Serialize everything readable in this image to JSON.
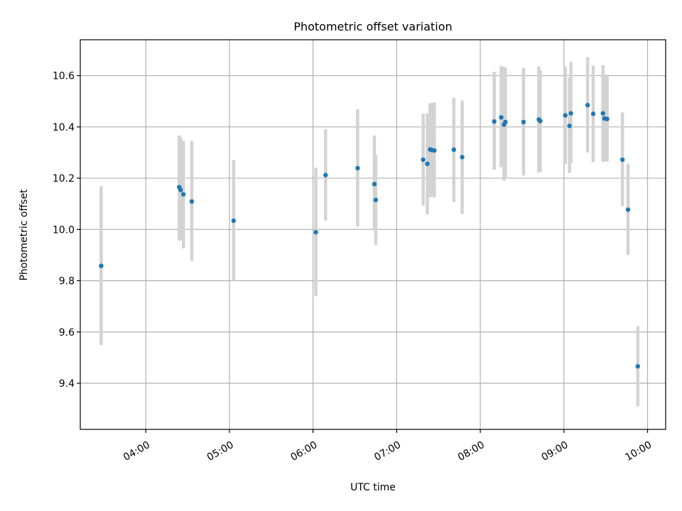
{
  "chart_data": {
    "type": "scatter",
    "title": "Photometric offset variation",
    "xlabel": "UTC time",
    "ylabel": "Photometric offset",
    "xlim": [
      "03:13",
      "10:13"
    ],
    "ylim": [
      9.22,
      10.74
    ],
    "grid": true,
    "x_ticks": [
      "04:00",
      "05:00",
      "06:00",
      "07:00",
      "08:00",
      "09:00",
      "10:00"
    ],
    "y_ticks": [
      "9.4",
      "9.6",
      "9.8",
      "10.0",
      "10.2",
      "10.4",
      "10.6"
    ],
    "colors": {
      "point": "#1f77b4",
      "errorbar": "#d3d3d3",
      "grid": "#b0b0b0"
    },
    "points": [
      {
        "x": "03:28",
        "y": 9.858,
        "lo": 9.549,
        "hi": 10.169
      },
      {
        "x": "04:24",
        "y": 10.165,
        "lo": 9.956,
        "hi": 10.367
      },
      {
        "x": "04:25",
        "y": 10.154,
        "lo": 9.96,
        "hi": 10.359
      },
      {
        "x": "04:27",
        "y": 10.137,
        "lo": 9.926,
        "hi": 10.346
      },
      {
        "x": "04:33",
        "y": 10.109,
        "lo": 9.877,
        "hi": 10.346
      },
      {
        "x": "05:03",
        "y": 10.034,
        "lo": 9.8,
        "hi": 10.27
      },
      {
        "x": "06:02",
        "y": 9.989,
        "lo": 9.74,
        "hi": 10.241
      },
      {
        "x": "06:09",
        "y": 10.212,
        "lo": 10.035,
        "hi": 10.392
      },
      {
        "x": "06:32",
        "y": 10.239,
        "lo": 10.011,
        "hi": 10.469
      },
      {
        "x": "06:44",
        "y": 10.177,
        "lo": 9.996,
        "hi": 10.367
      },
      {
        "x": "06:45",
        "y": 10.115,
        "lo": 9.94,
        "hi": 10.29
      },
      {
        "x": "07:19",
        "y": 10.272,
        "lo": 10.093,
        "hi": 10.452
      },
      {
        "x": "07:22",
        "y": 10.256,
        "lo": 10.059,
        "hi": 10.452
      },
      {
        "x": "07:24",
        "y": 10.312,
        "lo": 10.126,
        "hi": 10.492
      },
      {
        "x": "07:25",
        "y": 10.31,
        "lo": 10.13,
        "hi": 10.493
      },
      {
        "x": "07:27",
        "y": 10.308,
        "lo": 10.124,
        "hi": 10.496
      },
      {
        "x": "07:41",
        "y": 10.311,
        "lo": 10.107,
        "hi": 10.513
      },
      {
        "x": "07:47",
        "y": 10.282,
        "lo": 10.061,
        "hi": 10.503
      },
      {
        "x": "08:10",
        "y": 10.421,
        "lo": 10.233,
        "hi": 10.615
      },
      {
        "x": "08:15",
        "y": 10.437,
        "lo": 10.243,
        "hi": 10.637
      },
      {
        "x": "08:17",
        "y": 10.409,
        "lo": 10.19,
        "hi": 10.634
      },
      {
        "x": "08:18",
        "y": 10.419,
        "lo": 10.203,
        "hi": 10.631
      },
      {
        "x": "08:31",
        "y": 10.419,
        "lo": 10.21,
        "hi": 10.63
      },
      {
        "x": "08:42",
        "y": 10.429,
        "lo": 10.222,
        "hi": 10.636
      },
      {
        "x": "08:43",
        "y": 10.423,
        "lo": 10.225,
        "hi": 10.621
      },
      {
        "x": "09:01",
        "y": 10.445,
        "lo": 10.255,
        "hi": 10.635
      },
      {
        "x": "09:04",
        "y": 10.404,
        "lo": 10.221,
        "hi": 10.592
      },
      {
        "x": "09:05",
        "y": 10.453,
        "lo": 10.257,
        "hi": 10.654
      },
      {
        "x": "09:17",
        "y": 10.485,
        "lo": 10.3,
        "hi": 10.672
      },
      {
        "x": "09:21",
        "y": 10.451,
        "lo": 10.263,
        "hi": 10.639
      },
      {
        "x": "09:28",
        "y": 10.453,
        "lo": 10.265,
        "hi": 10.641
      },
      {
        "x": "09:29",
        "y": 10.433,
        "lo": 10.263,
        "hi": 10.605
      },
      {
        "x": "09:31",
        "y": 10.431,
        "lo": 10.265,
        "hi": 10.597
      },
      {
        "x": "09:42",
        "y": 10.272,
        "lo": 10.091,
        "hi": 10.456
      },
      {
        "x": "09:46",
        "y": 10.077,
        "lo": 9.9,
        "hi": 10.256
      },
      {
        "x": "09:53",
        "y": 9.466,
        "lo": 9.31,
        "hi": 9.623
      }
    ]
  }
}
